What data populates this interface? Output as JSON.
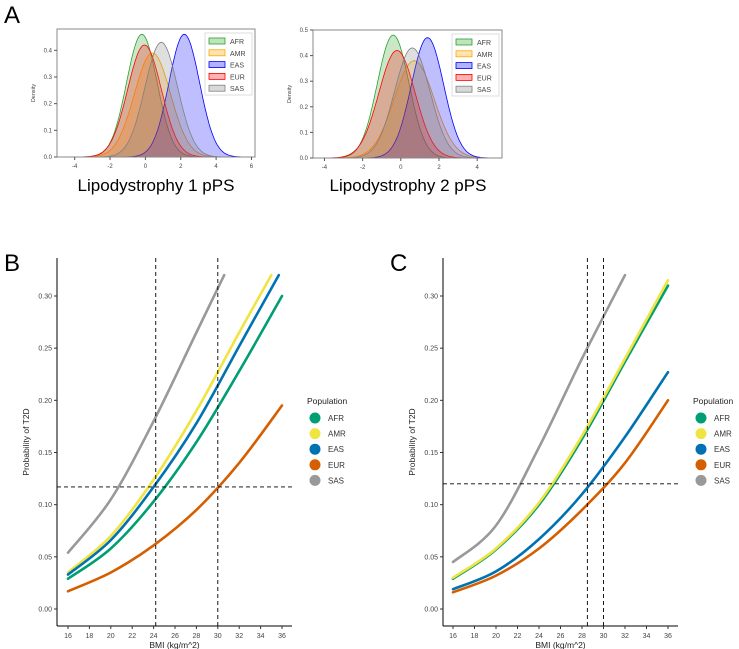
{
  "panels": {
    "a": "A",
    "b": "B",
    "c": "C"
  },
  "chart_data": [
    {
      "id": "A1",
      "type": "area",
      "title": "Lipodystrophy 1 pPS",
      "xlabel": "",
      "ylabel": "Density",
      "xlim": [
        -5,
        6.2
      ],
      "ylim": [
        0,
        0.48
      ],
      "xticks": [
        -4,
        -2,
        0,
        2,
        4,
        6
      ],
      "yticks": [
        0.0,
        0.1,
        0.2,
        0.3,
        0.4
      ],
      "legend_position": "top-right",
      "series": [
        {
          "name": "AFR",
          "color": "#2ca02c",
          "mean": -0.2,
          "peak": 0.46
        },
        {
          "name": "AMR",
          "color": "#ffa500",
          "mean": 0.4,
          "peak": 0.39
        },
        {
          "name": "EAS",
          "color": "#0000ff",
          "mean": 2.2,
          "peak": 0.46
        },
        {
          "name": "EUR",
          "color": "#ff0000",
          "mean": -0.05,
          "peak": 0.42
        },
        {
          "name": "SAS",
          "color": "#808080",
          "mean": 0.9,
          "peak": 0.43
        }
      ]
    },
    {
      "id": "A2",
      "type": "area",
      "title": "Lipodystrophy 2 pPS",
      "xlabel": "",
      "ylabel": "Density",
      "xlim": [
        -4.6,
        5.3
      ],
      "ylim": [
        0,
        0.5
      ],
      "xticks": [
        -4,
        -2,
        0,
        2,
        4
      ],
      "yticks": [
        0.0,
        0.1,
        0.2,
        0.3,
        0.4,
        0.5
      ],
      "legend_position": "top-right",
      "series": [
        {
          "name": "AFR",
          "color": "#2ca02c",
          "mean": -0.4,
          "peak": 0.48
        },
        {
          "name": "AMR",
          "color": "#ffa500",
          "mean": 0.7,
          "peak": 0.38
        },
        {
          "name": "EAS",
          "color": "#0000ff",
          "mean": 1.4,
          "peak": 0.47
        },
        {
          "name": "EUR",
          "color": "#ff0000",
          "mean": -0.2,
          "peak": 0.42
        },
        {
          "name": "SAS",
          "color": "#808080",
          "mean": 0.6,
          "peak": 0.43
        }
      ]
    },
    {
      "id": "B",
      "type": "line",
      "xlabel": "BMI (kg/m^2)",
      "ylabel": "Probability of T2D",
      "xlim": [
        15,
        37
      ],
      "ylim": [
        -0.015,
        0.335
      ],
      "xticks": [
        16,
        18,
        20,
        22,
        24,
        26,
        28,
        30,
        32,
        34,
        36
      ],
      "yticks": [
        "0.00",
        "0.05",
        "0.10",
        "0.15",
        "0.20",
        "0.25",
        "0.30"
      ],
      "vlines": [
        24.2,
        30
      ],
      "hline": 0.117,
      "legend_title": "Population",
      "legend_position": "right",
      "series": [
        {
          "name": "AFR",
          "color": "#009E73",
          "x": [
            16,
            20,
            24,
            28,
            32,
            36
          ],
          "y": [
            0.029,
            0.058,
            0.103,
            0.16,
            0.228,
            0.3
          ]
        },
        {
          "name": "AMR",
          "color": "#F0E442",
          "x": [
            16,
            20,
            24,
            28,
            32,
            35
          ],
          "y": [
            0.035,
            0.07,
            0.124,
            0.19,
            0.265,
            0.32
          ]
        },
        {
          "name": "EAS",
          "color": "#0072B2",
          "x": [
            16,
            20,
            24,
            28,
            32,
            35.7
          ],
          "y": [
            0.033,
            0.066,
            0.117,
            0.178,
            0.252,
            0.32
          ]
        },
        {
          "name": "EUR",
          "color": "#D55E00",
          "x": [
            16,
            20,
            24,
            28,
            32,
            36
          ],
          "y": [
            0.017,
            0.035,
            0.061,
            0.095,
            0.14,
            0.195
          ]
        },
        {
          "name": "SAS",
          "color": "#999999",
          "x": [
            16,
            20,
            24,
            28,
            30.6
          ],
          "y": [
            0.054,
            0.105,
            0.18,
            0.265,
            0.32
          ]
        }
      ]
    },
    {
      "id": "C",
      "type": "line",
      "xlabel": "BMI (kg/m^2)",
      "ylabel": "Probability of T2D",
      "xlim": [
        15,
        37
      ],
      "ylim": [
        -0.015,
        0.335
      ],
      "xticks": [
        16,
        18,
        20,
        22,
        24,
        26,
        28,
        30,
        32,
        34,
        36
      ],
      "yticks": [
        "0.00",
        "0.05",
        "0.10",
        "0.15",
        "0.20",
        "0.25",
        "0.30"
      ],
      "vlines": [
        28.5,
        30
      ],
      "hline": 0.12,
      "legend_title": "Population",
      "legend_position": "right",
      "series": [
        {
          "name": "AFR",
          "color": "#009E73",
          "x": [
            16,
            20,
            24,
            28,
            32,
            36
          ],
          "y": [
            0.029,
            0.057,
            0.1,
            0.163,
            0.237,
            0.31
          ]
        },
        {
          "name": "AMR",
          "color": "#F0E442",
          "x": [
            16,
            20,
            24,
            28,
            32,
            36
          ],
          "y": [
            0.03,
            0.058,
            0.102,
            0.166,
            0.24,
            0.315
          ]
        },
        {
          "name": "EAS",
          "color": "#0072B2",
          "x": [
            16,
            20,
            24,
            28,
            32,
            36
          ],
          "y": [
            0.019,
            0.036,
            0.067,
            0.11,
            0.165,
            0.227
          ]
        },
        {
          "name": "EUR",
          "color": "#D55E00",
          "x": [
            16,
            20,
            24,
            28,
            32,
            36
          ],
          "y": [
            0.016,
            0.032,
            0.058,
            0.095,
            0.14,
            0.2
          ]
        },
        {
          "name": "SAS",
          "color": "#999999",
          "x": [
            16,
            20,
            24,
            28,
            32
          ],
          "y": [
            0.045,
            0.08,
            0.155,
            0.24,
            0.32
          ]
        }
      ]
    }
  ]
}
